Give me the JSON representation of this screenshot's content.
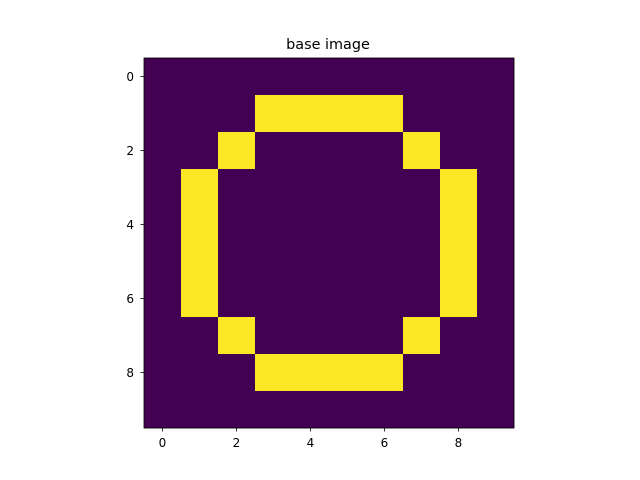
{
  "chart_data": {
    "type": "heatmap",
    "title": "base image",
    "xlabel": "",
    "ylabel": "",
    "rows": 10,
    "cols": 10,
    "x_ticks": [
      0,
      2,
      4,
      6,
      8
    ],
    "y_ticks": [
      0,
      2,
      4,
      6,
      8
    ],
    "xlim": [
      -0.5,
      9.5
    ],
    "ylim": [
      9.5,
      -0.5
    ],
    "grid": false,
    "colormap": "viridis",
    "colors": {
      "0": "#440154",
      "1": "#fde725"
    },
    "values": [
      [
        0,
        0,
        0,
        0,
        0,
        0,
        0,
        0,
        0,
        0
      ],
      [
        0,
        0,
        0,
        1,
        1,
        1,
        1,
        0,
        0,
        0
      ],
      [
        0,
        0,
        1,
        0,
        0,
        0,
        0,
        1,
        0,
        0
      ],
      [
        0,
        1,
        0,
        0,
        0,
        0,
        0,
        0,
        1,
        0
      ],
      [
        0,
        1,
        0,
        0,
        0,
        0,
        0,
        0,
        1,
        0
      ],
      [
        0,
        1,
        0,
        0,
        0,
        0,
        0,
        0,
        1,
        0
      ],
      [
        0,
        1,
        0,
        0,
        0,
        0,
        0,
        0,
        1,
        0
      ],
      [
        0,
        0,
        1,
        0,
        0,
        0,
        0,
        1,
        0,
        0
      ],
      [
        0,
        0,
        0,
        1,
        1,
        1,
        1,
        0,
        0,
        0
      ],
      [
        0,
        0,
        0,
        0,
        0,
        0,
        0,
        0,
        0,
        0
      ]
    ]
  }
}
